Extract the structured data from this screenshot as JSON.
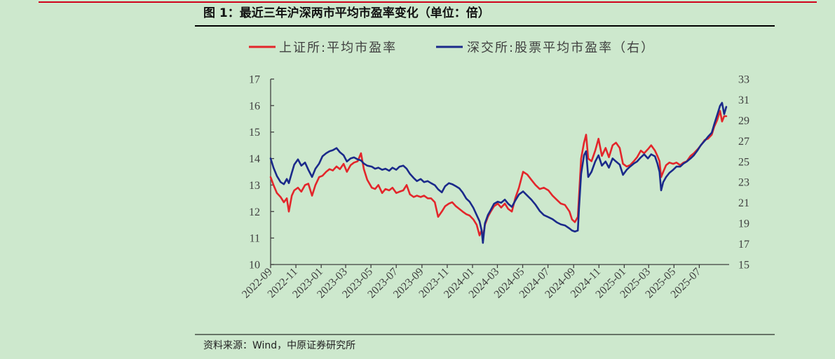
{
  "chart_data": {
    "type": "line",
    "title": "图 1：最近三年沪深两市平均市盈率变化（单位：倍）",
    "source": "资料来源：Wind，中原证券研究所",
    "grid": false,
    "legend": "top",
    "xlim": [
      "2022-09-01",
      "2025-09-11"
    ],
    "xticks": [
      "2022-09",
      "2022-11",
      "2023-01",
      "2023-03",
      "2023-05",
      "2023-07",
      "2023-09",
      "2023-11",
      "2024-01",
      "2024-03",
      "2024-05",
      "2024-07",
      "2024-09",
      "2024-11",
      "2025-01",
      "2025-03",
      "2025-05",
      "2025-07"
    ],
    "ylim": [
      10,
      17
    ],
    "yticks": [
      10,
      11,
      12,
      13,
      14,
      15,
      16,
      17
    ],
    "y2lim": [
      15,
      33
    ],
    "y2ticks": [
      15,
      17,
      19,
      21,
      23,
      25,
      27,
      29,
      31,
      33
    ],
    "x": [
      "2022-09-01",
      "2022-09-08",
      "2022-09-16",
      "2022-09-25",
      "2022-10-03",
      "2022-10-10",
      "2022-10-15",
      "2022-10-22",
      "2022-10-28",
      "2022-11-06",
      "2022-11-14",
      "2022-11-23",
      "2022-12-01",
      "2022-12-10",
      "2022-12-18",
      "2022-12-27",
      "2023-01-04",
      "2023-01-13",
      "2023-01-21",
      "2023-01-29",
      "2023-02-07",
      "2023-02-15",
      "2023-02-24",
      "2023-03-04",
      "2023-03-13",
      "2023-03-21",
      "2023-03-30",
      "2023-04-07",
      "2023-04-14",
      "2023-04-22",
      "2023-05-03",
      "2023-05-11",
      "2023-05-19",
      "2023-05-28",
      "2023-06-05",
      "2023-06-14",
      "2023-06-22",
      "2023-07-01",
      "2023-07-09",
      "2023-07-18",
      "2023-07-26",
      "2023-08-03",
      "2023-08-12",
      "2023-08-20",
      "2023-08-29",
      "2023-09-06",
      "2023-09-15",
      "2023-09-23",
      "2023-10-02",
      "2023-10-10",
      "2023-10-19",
      "2023-10-27",
      "2023-11-05",
      "2023-11-13",
      "2023-11-22",
      "2023-11-30",
      "2023-12-08",
      "2023-12-17",
      "2023-12-25",
      "2024-01-03",
      "2024-01-11",
      "2024-01-18",
      "2024-01-23",
      "2024-01-26",
      "2024-01-31",
      "2024-02-07",
      "2024-02-14",
      "2024-02-22",
      "2024-03-02",
      "2024-03-10",
      "2024-03-19",
      "2024-03-27",
      "2024-04-05",
      "2024-04-13",
      "2024-04-22",
      "2024-05-02",
      "2024-05-12",
      "2024-05-22",
      "2024-06-01",
      "2024-06-11",
      "2024-06-21",
      "2024-07-02",
      "2024-07-12",
      "2024-07-22",
      "2024-08-01",
      "2024-08-11",
      "2024-08-22",
      "2024-08-28",
      "2024-09-04",
      "2024-09-11",
      "2024-09-14",
      "2024-09-19",
      "2024-09-26",
      "2024-10-01",
      "2024-10-06",
      "2024-10-14",
      "2024-10-23",
      "2024-10-31",
      "2024-11-08",
      "2024-11-17",
      "2024-11-25",
      "2024-12-04",
      "2024-12-12",
      "2024-12-21",
      "2024-12-29",
      "2025-01-07",
      "2025-01-15",
      "2025-01-24",
      "2025-02-01",
      "2025-02-10",
      "2025-02-18",
      "2025-02-27",
      "2025-03-07",
      "2025-03-16",
      "2025-03-22",
      "2025-03-27",
      "2025-03-31",
      "2025-04-05",
      "2025-04-12",
      "2025-04-20",
      "2025-04-29",
      "2025-05-07",
      "2025-05-16",
      "2025-05-24",
      "2025-06-01",
      "2025-06-10",
      "2025-06-18",
      "2025-06-27",
      "2025-07-05",
      "2025-07-14",
      "2025-07-22",
      "2025-07-31",
      "2025-08-06",
      "2025-08-13",
      "2025-08-20",
      "2025-08-25",
      "2025-08-30",
      "2025-09-04"
    ],
    "series": [
      {
        "name": "上证所:平均市盈率",
        "yaxis": 1,
        "color": "#e3262b",
        "values": [
          13.3,
          13.0,
          12.7,
          12.55,
          12.35,
          12.5,
          12.0,
          12.6,
          12.8,
          12.9,
          12.75,
          13.0,
          13.05,
          12.6,
          13.0,
          13.3,
          13.35,
          13.5,
          13.6,
          13.55,
          13.7,
          13.6,
          13.8,
          13.5,
          13.75,
          13.85,
          13.9,
          14.2,
          13.6,
          13.2,
          12.9,
          12.85,
          13.0,
          12.7,
          12.85,
          12.8,
          12.9,
          12.7,
          12.75,
          12.8,
          13.0,
          12.65,
          12.55,
          12.6,
          12.55,
          12.6,
          12.5,
          12.5,
          12.35,
          11.8,
          12.0,
          12.2,
          12.3,
          12.35,
          12.2,
          12.1,
          12.0,
          11.9,
          11.85,
          11.7,
          11.5,
          11.1,
          11.3,
          11.0,
          11.5,
          11.8,
          12.0,
          12.2,
          12.3,
          12.15,
          12.3,
          12.1,
          12.0,
          12.5,
          12.9,
          13.5,
          13.4,
          13.2,
          13.0,
          12.85,
          12.9,
          12.8,
          12.6,
          12.45,
          12.3,
          12.25,
          12.0,
          11.7,
          11.6,
          11.8,
          12.6,
          14.0,
          14.6,
          14.9,
          14.0,
          13.9,
          14.3,
          14.75,
          14.1,
          14.4,
          14.05,
          14.5,
          14.6,
          14.4,
          13.8,
          13.7,
          13.75,
          13.9,
          14.05,
          14.3,
          14.2,
          14.35,
          14.5,
          14.3,
          14.1,
          13.9,
          13.3,
          13.5,
          13.75,
          13.85,
          13.8,
          13.85,
          13.75,
          13.85,
          13.9,
          14.1,
          14.2,
          14.35,
          14.5,
          14.7,
          14.75,
          14.9,
          15.2,
          15.45,
          15.8,
          15.4,
          15.6,
          15.6
        ]
      },
      {
        "name": "深交所:股票平均市盈率（右）",
        "yaxis": 2,
        "color": "#1b2a8a",
        "values": [
          25.3,
          24.4,
          23.6,
          23.0,
          22.8,
          23.3,
          22.9,
          23.9,
          24.7,
          25.2,
          24.6,
          24.9,
          24.2,
          23.5,
          24.3,
          24.8,
          25.5,
          25.8,
          26.0,
          26.1,
          26.3,
          25.9,
          25.6,
          25.0,
          25.3,
          25.4,
          25.2,
          25.1,
          24.8,
          24.6,
          24.5,
          24.3,
          24.4,
          24.2,
          24.3,
          24.1,
          24.4,
          24.2,
          24.5,
          24.6,
          24.3,
          23.8,
          23.4,
          23.1,
          23.3,
          23.0,
          23.1,
          22.9,
          22.7,
          22.3,
          22.0,
          22.6,
          22.9,
          22.8,
          22.6,
          22.4,
          22.0,
          21.4,
          21.1,
          20.5,
          19.8,
          19.2,
          18.3,
          17.1,
          19.0,
          19.8,
          20.3,
          20.9,
          21.1,
          21.0,
          21.3,
          20.9,
          20.6,
          21.2,
          21.8,
          22.1,
          21.7,
          21.3,
          20.8,
          20.2,
          19.8,
          19.6,
          19.4,
          19.1,
          18.9,
          18.8,
          18.5,
          18.3,
          18.2,
          18.3,
          20.5,
          23.8,
          25.6,
          26.0,
          23.5,
          24.0,
          25.0,
          25.6,
          24.6,
          25.0,
          24.4,
          25.3,
          25.0,
          24.7,
          23.7,
          24.2,
          24.5,
          24.8,
          25.0,
          25.4,
          25.7,
          25.3,
          25.7,
          25.5,
          24.8,
          24.0,
          22.2,
          23.0,
          23.5,
          23.9,
          24.2,
          24.5,
          24.5,
          24.8,
          25.0,
          25.3,
          25.6,
          26.1,
          26.6,
          27.0,
          27.4,
          27.8,
          28.6,
          29.5,
          30.4,
          30.7,
          29.6,
          30.3
        ]
      }
    ]
  }
}
